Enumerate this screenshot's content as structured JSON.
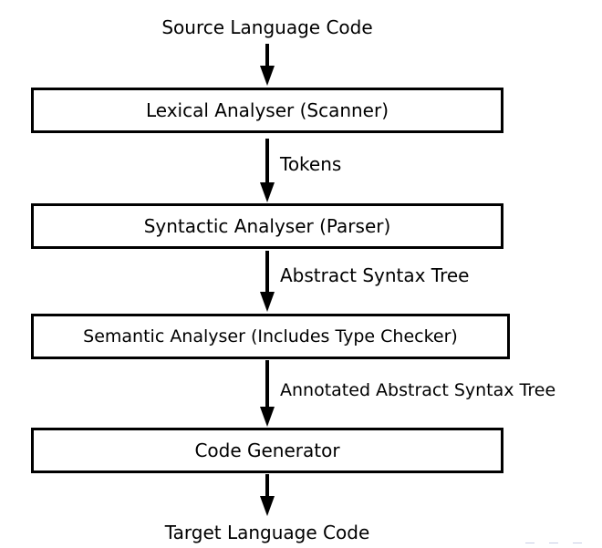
{
  "diagram": {
    "input_label": "Source Language Code",
    "output_label": "Target Language Code",
    "stages": [
      {
        "label": "Lexical Analyser (Scanner)"
      },
      {
        "label": "Syntactic Analyser (Parser)"
      },
      {
        "label": "Semantic Analyser (Includes Type Checker)"
      },
      {
        "label": "Code Generator"
      }
    ],
    "edges": [
      {
        "label": "Tokens"
      },
      {
        "label": "Abstract Syntax Tree"
      },
      {
        "label": "Annotated Abstract Syntax Tree"
      }
    ]
  }
}
